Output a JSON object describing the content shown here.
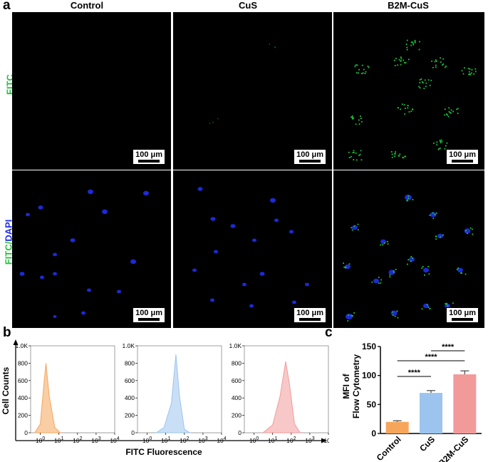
{
  "figure": {
    "label_a": "a",
    "label_b": "b",
    "label_c": "c",
    "columns": [
      "Control",
      "CuS",
      "B2M-CuS"
    ],
    "row_top_label": "FITC",
    "row_bottom_label_fitc": "FITC",
    "row_bottom_label_sep": "/",
    "row_bottom_label_dapi": "DAPI",
    "scale_bar": "100 μm",
    "colors": {
      "fitc": "#1fc43a",
      "dapi": "#1f2ff0",
      "control": "#f5a65b",
      "cus": "#9cc4ee",
      "b2m": "#f29a9a"
    }
  },
  "chart_data": [
    {
      "type": "area",
      "panel": "b",
      "ylabel": "Cell Counts",
      "xlabel": "FITC Fluorescence",
      "y_ticks": [
        "0",
        "200",
        "400",
        "600",
        "800",
        "1.0K"
      ],
      "x_ticks": [
        "10^0",
        "10^1",
        "10^2",
        "10^3",
        "10^4"
      ],
      "ylim": [
        0,
        1000
      ],
      "x_scale": "log",
      "xlim": [
        0.3,
        10000
      ],
      "series": [
        {
          "color": "#f5a65b",
          "x": [
            0.5,
            1,
            1.5,
            2,
            3,
            6,
            12
          ],
          "y": [
            0,
            100,
            520,
            800,
            420,
            60,
            0
          ]
        },
        {
          "color": "#9cc4ee",
          "x": [
            3,
            8,
            20,
            35,
            55,
            100,
            200
          ],
          "y": [
            0,
            60,
            340,
            900,
            420,
            40,
            0
          ]
        },
        {
          "color": "#f29a9a",
          "x": [
            3,
            10,
            25,
            50,
            80,
            150,
            300
          ],
          "y": [
            0,
            90,
            420,
            820,
            560,
            100,
            0
          ]
        }
      ]
    },
    {
      "type": "bar",
      "panel": "c",
      "categories": [
        "Control",
        "CuS",
        "B2M-CuS"
      ],
      "values": [
        20,
        70,
        102
      ],
      "errors": [
        2,
        4,
        6
      ],
      "colors": [
        "#f5a65b",
        "#9cc4ee",
        "#f29a9a"
      ],
      "ylabel_line1": "MFI of",
      "ylabel_line2": "Flow Cytometry",
      "ylim": [
        0,
        150
      ],
      "y_ticks": [
        "0",
        "50",
        "100",
        "150"
      ],
      "significance": [
        {
          "from": "Control",
          "to": "CuS",
          "label": "****"
        },
        {
          "from": "Control",
          "to": "B2M-CuS",
          "label": "****"
        },
        {
          "from": "CuS",
          "to": "B2M-CuS",
          "label": "****"
        }
      ]
    }
  ]
}
